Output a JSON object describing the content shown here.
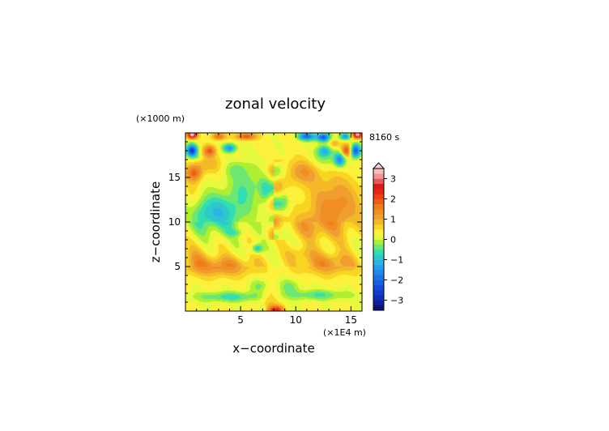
{
  "chart_data": {
    "type": "heatmap",
    "title": "zonal velocity",
    "time_label": "8160 s",
    "xlabel": "x−coordinate",
    "ylabel": "z−coordinate",
    "x_unit": "(×1E4 m)",
    "z_unit": "(×1000 m)",
    "xlim": [
      0,
      16
    ],
    "zlim": [
      0,
      20
    ],
    "x_ticks": [
      5,
      10,
      15
    ],
    "x_tick_labels": [
      "5",
      "10",
      "15"
    ],
    "z_ticks": [
      5,
      10,
      15
    ],
    "z_tick_labels": [
      "5",
      "10",
      "15"
    ],
    "colorbar": {
      "vmin": -3.5,
      "vmax": 3.5,
      "step": 0.25,
      "extend": "both",
      "ticks": [
        3,
        2,
        1,
        0,
        -1,
        -2,
        -3
      ],
      "tick_labels": [
        "3",
        "2",
        "1",
        "0",
        "−1",
        "−2",
        "−3"
      ]
    },
    "colors": {
      "neg_3": "#0c0c6e",
      "neg_2": "#1040d8",
      "neg_1": "#28a8f0",
      "neg_05": "#30e0b0",
      "zero_lo": "#b6f02a",
      "zero_hi": "#ffff4a",
      "pos_05": "#f8d820",
      "pos_1": "#f0a030",
      "pos_15": "#f08018",
      "pos_2": "#f04018",
      "pos_25": "#e01010",
      "pos_3": "#f09090",
      "pos_35": "#fcd0d0"
    },
    "field_features": [
      {
        "x": 0.6,
        "z": 18.0,
        "u": -2.4
      },
      {
        "x": 15.4,
        "z": 18.0,
        "u": -2.2
      },
      {
        "x": 0.6,
        "z": 19.7,
        "u": 3.4
      },
      {
        "x": 15.6,
        "z": 19.7,
        "u": 3.4
      },
      {
        "x": 2.2,
        "z": 18.0,
        "u": 1.8
      },
      {
        "x": 14.6,
        "z": 18.0,
        "u": 2.3
      },
      {
        "x": 3.0,
        "z": 19.6,
        "u": 1.9
      },
      {
        "x": 5.5,
        "z": 19.6,
        "u": 2.1
      },
      {
        "x": 11.0,
        "z": 19.6,
        "u": -2.4
      },
      {
        "x": 12.5,
        "z": 19.5,
        "u": -2.6
      },
      {
        "x": 14.5,
        "z": 19.6,
        "u": -2.0
      },
      {
        "x": 4.0,
        "z": 18.3,
        "u": -1.6
      },
      {
        "x": 12.6,
        "z": 18.0,
        "u": -1.6
      },
      {
        "x": 14.0,
        "z": 17.0,
        "u": -2.1
      },
      {
        "x": 1.0,
        "z": 15.5,
        "u": 1.7
      },
      {
        "x": 4.5,
        "z": 15.5,
        "u": -1.2
      },
      {
        "x": 6.2,
        "z": 14.5,
        "u": -1.0
      },
      {
        "x": 10.5,
        "z": 15.8,
        "u": 1.4
      },
      {
        "x": 12.5,
        "z": 12.5,
        "u": 1.3
      },
      {
        "x": 3.0,
        "z": 11.0,
        "u": -0.9
      },
      {
        "x": 13.8,
        "z": 11.5,
        "u": 1.2
      },
      {
        "x": 3.0,
        "z": 5.0,
        "u": 1.5
      },
      {
        "x": 13.0,
        "z": 5.3,
        "u": 1.3
      },
      {
        "x": 4.5,
        "z": 1.6,
        "u": -1.1
      },
      {
        "x": 11.5,
        "z": 1.8,
        "u": -1.0
      },
      {
        "x": 6.7,
        "z": 2.6,
        "u": -1.3
      },
      {
        "x": 9.4,
        "z": 2.6,
        "u": -1.3
      },
      {
        "x": 7.5,
        "z": 0.9,
        "u": 1.9
      },
      {
        "x": 8.3,
        "z": 0.2,
        "u": 2.6
      }
    ]
  }
}
